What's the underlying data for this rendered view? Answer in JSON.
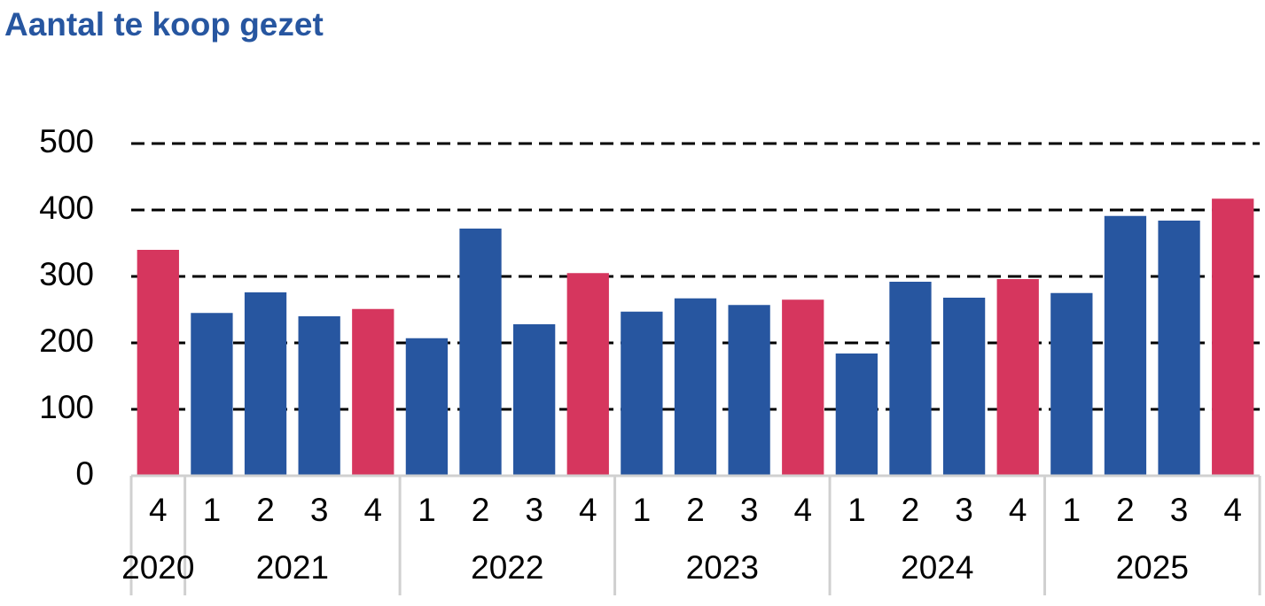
{
  "chart_data": {
    "type": "bar",
    "title": "Aantal te koop gezet",
    "categories": [
      "4",
      "1",
      "2",
      "3",
      "4",
      "1",
      "2",
      "3",
      "4",
      "1",
      "2",
      "3",
      "4",
      "1",
      "2",
      "3",
      "4",
      "1",
      "2",
      "3",
      "4"
    ],
    "years": [
      "2020",
      "2021",
      "2021",
      "2021",
      "2021",
      "2022",
      "2022",
      "2022",
      "2022",
      "2023",
      "2023",
      "2023",
      "2023",
      "2024",
      "2024",
      "2024",
      "2024",
      "2025",
      "2025",
      "2025",
      "2025"
    ],
    "values": [
      340,
      245,
      276,
      240,
      251,
      207,
      372,
      228,
      305,
      247,
      267,
      257,
      265,
      184,
      292,
      268,
      296,
      275,
      391,
      384,
      417
    ],
    "colors": [
      "#d6365e",
      "#2756a0",
      "#2756a0",
      "#2756a0",
      "#d6365e",
      "#2756a0",
      "#2756a0",
      "#2756a0",
      "#d6365e",
      "#2756a0",
      "#2756a0",
      "#2756a0",
      "#d6365e",
      "#2756a0",
      "#2756a0",
      "#2756a0",
      "#d6365e",
      "#2756a0",
      "#2756a0",
      "#2756a0",
      "#d6365e"
    ],
    "ylim": [
      0,
      500
    ],
    "yticks": [
      0,
      100,
      200,
      300,
      400,
      500
    ],
    "grid": true
  }
}
